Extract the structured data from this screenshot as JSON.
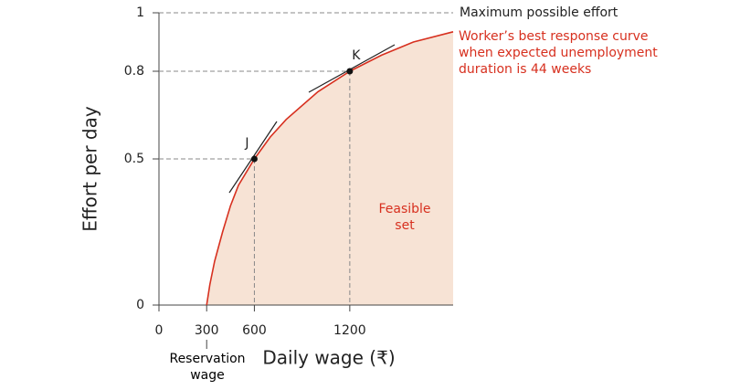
{
  "chart_data": {
    "type": "line",
    "x_label": "Daily wage (₹)",
    "y_label": "Effort per day",
    "xlim": [
      0,
      1850
    ],
    "ylim": [
      0,
      1
    ],
    "xticks": [
      0,
      300,
      600,
      1200
    ],
    "yticks": [
      0,
      0.5,
      0.8,
      1
    ],
    "x": [
      300,
      320,
      350,
      400,
      450,
      500,
      600,
      700,
      800,
      1000,
      1200,
      1400,
      1600,
      1850
    ],
    "series": [
      {
        "name": "Worker’s best response curve when expected unemployment duration is 44 weeks",
        "color": "#d7301f",
        "values": [
          0,
          0.07,
          0.15,
          0.25,
          0.34,
          0.41,
          0.5,
          0.575,
          0.635,
          0.73,
          0.8,
          0.855,
          0.9,
          0.935
        ]
      }
    ],
    "points": [
      {
        "label": "J",
        "x": 600,
        "y": 0.5
      },
      {
        "label": "K",
        "x": 1200,
        "y": 0.8
      }
    ],
    "max_effort_label": "Maximum possible effort",
    "feasible_label": "Feasible set",
    "reservation_label": "Reservation wage",
    "area_color": "#f7e3d5"
  }
}
